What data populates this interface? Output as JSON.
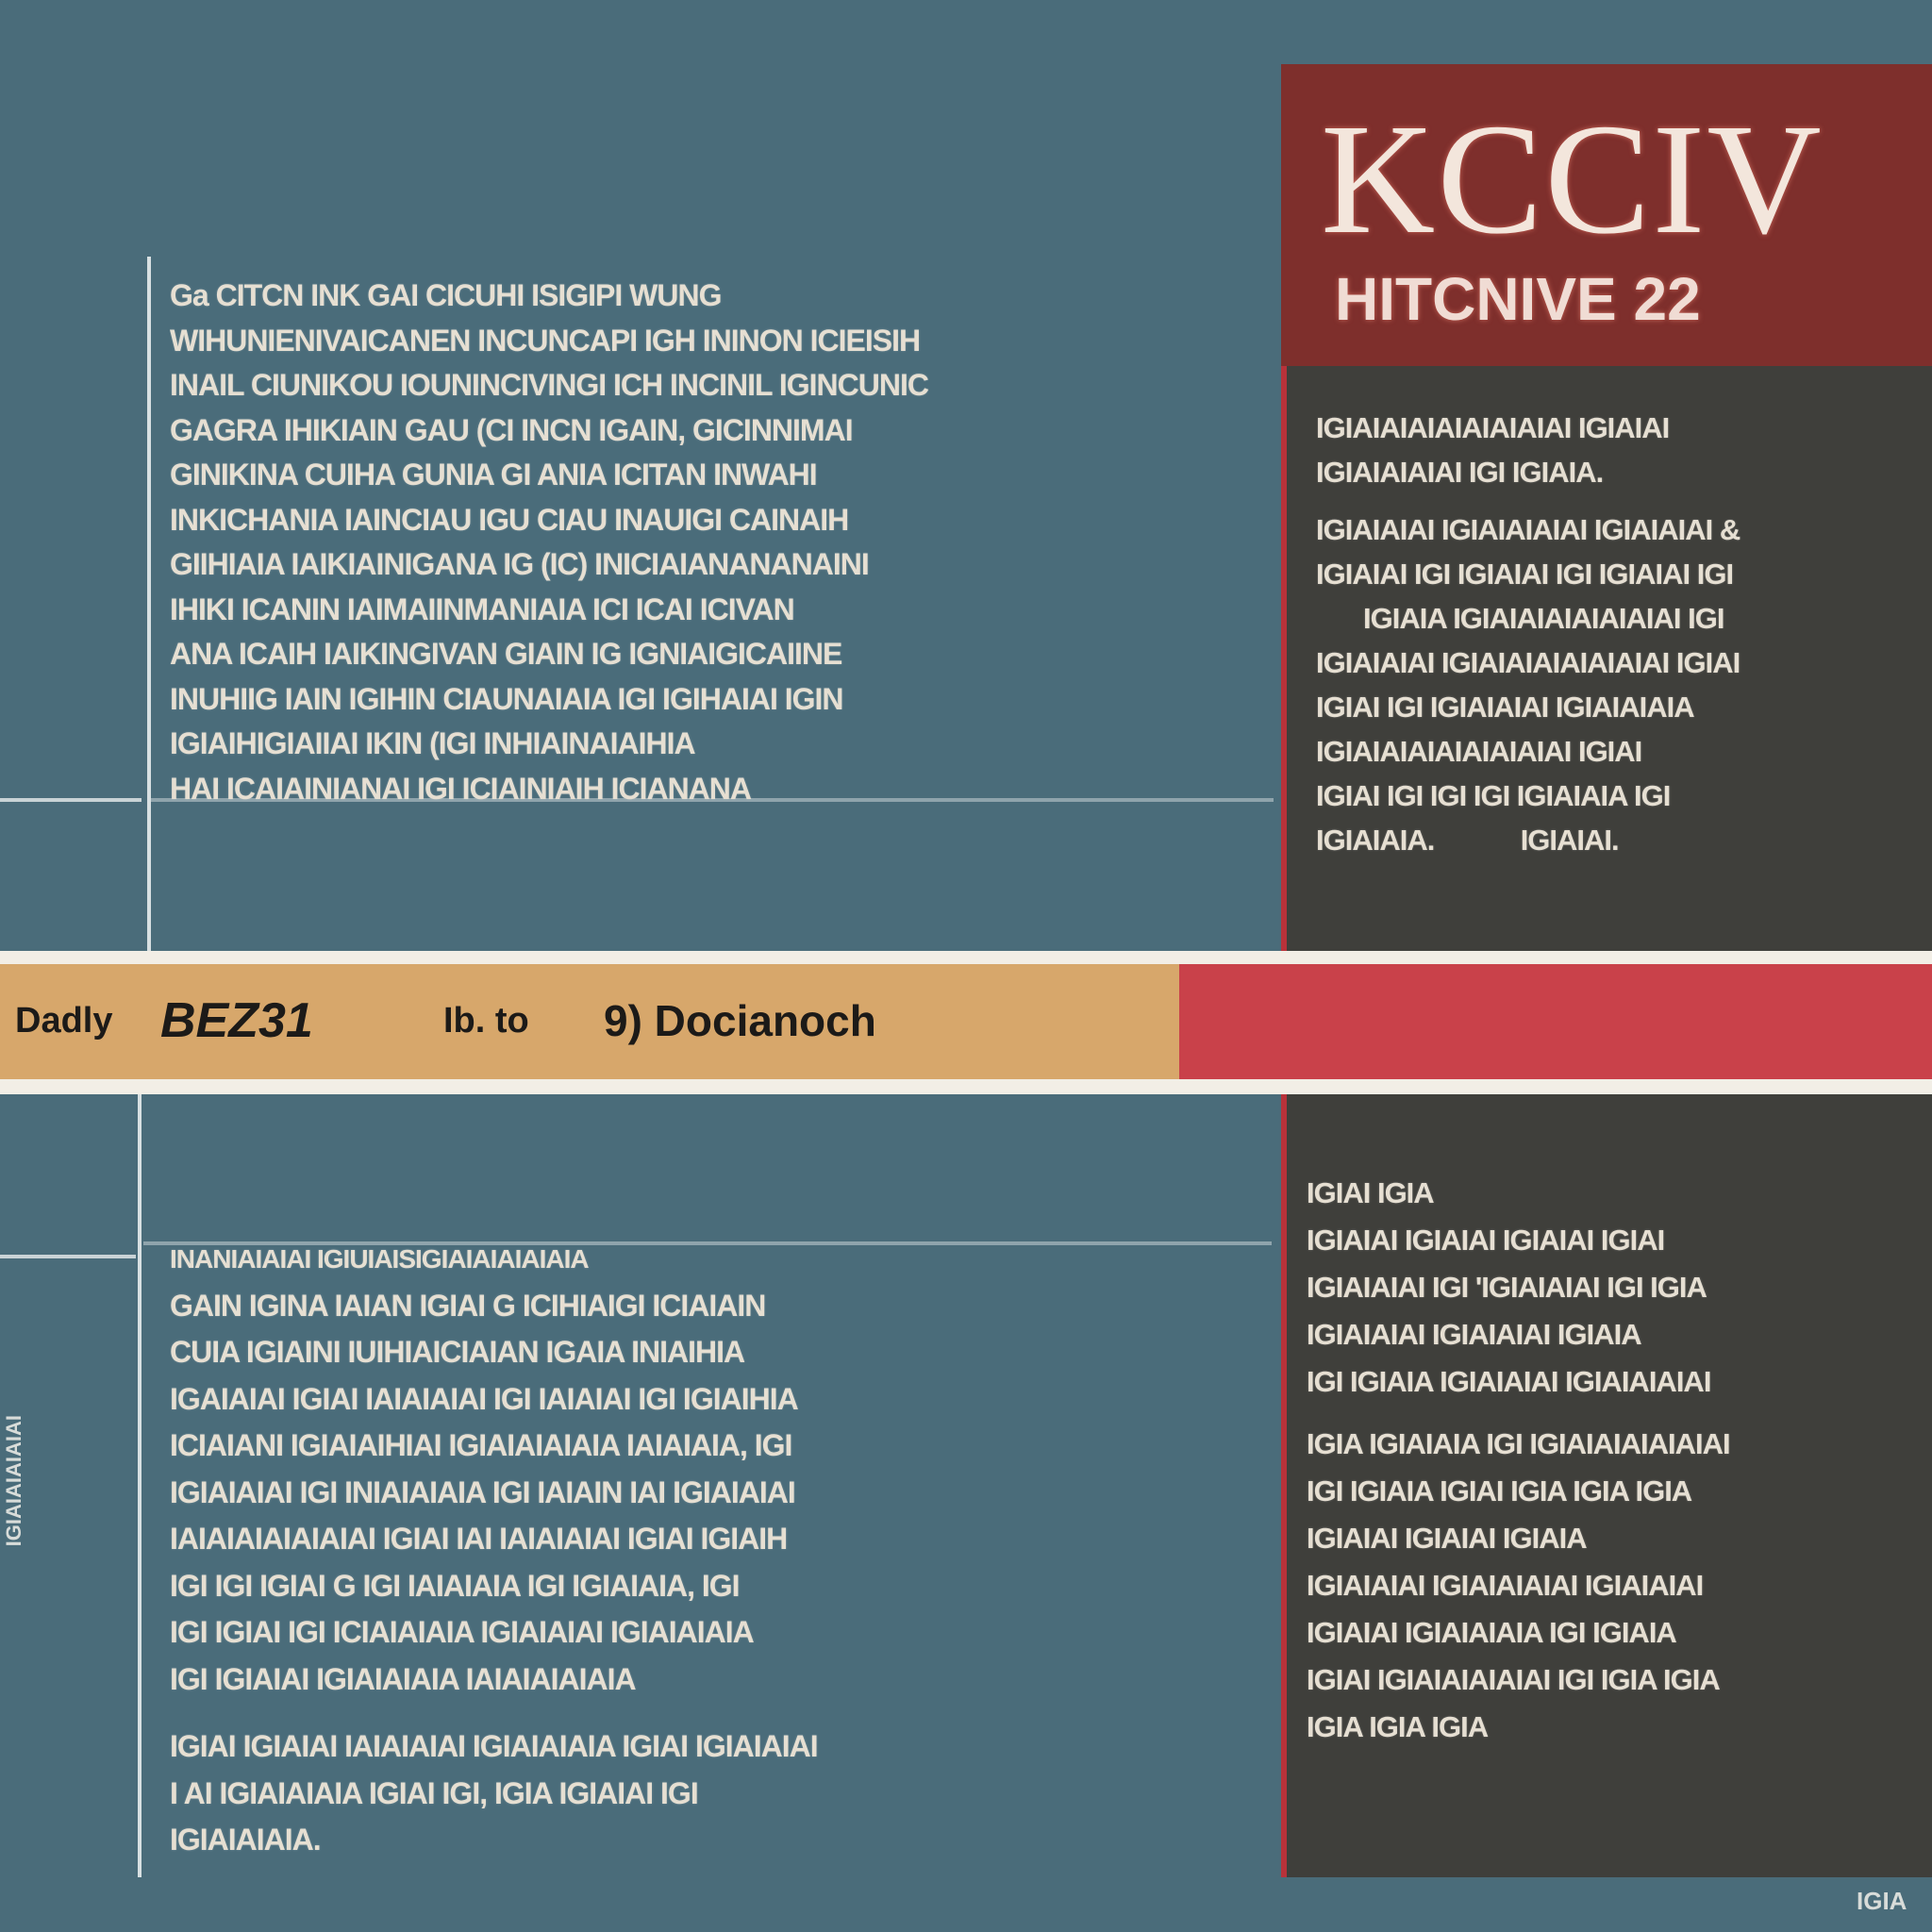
{
  "title": {
    "main": "KCCIV",
    "sub": "HITCNIVE 22"
  },
  "band": {
    "label_a": "Dadly",
    "label_b": "BEZ31",
    "label_c": "Ib. to",
    "label_d": "9) Docianoch"
  },
  "left_top_lines": [
    "Ga CITCN INK GAI CICUHI ISIGIPI WUNG",
    "WIHUNIENIVAICANEN INCUNCAPI IGH ININON ICIEISIH",
    "INAIL CIUNIKOU IOUNINCIVINGI ICH INCINIL IGINCUNIC",
    "GAGRA IHIKIAIN GAU (CI INCN IGAIN, GICINNIMAI",
    "GINIKINA CUIHA GUNIA GI ANIA ICITAN INWAHI",
    "INKICHANIA IAINCIAU IGU CIAU INAUIGI CAINAIH",
    "GIIHIAIA IAIKIAINIGANA IG (IC) INICIAIANANANAINI",
    "IHIKI ICANIN IAIMAIINMANIAIA ICI ICAI ICIVAN",
    "ANA ICAIH IAIKINGIVAN GIAIN IG IGNIAIGICAIINE",
    "INUHIIG IAIN IGIHIN CIAUNAIAIA IGI IGIHAIAI IGIN",
    "IGIAIHIGIAIIAI IKIN (IGI INHIAINAIAIHIA",
    "HAI ICAIAINIANAI IGI ICIAINIAIH ICIANANA"
  ],
  "left_bottom_lines": [
    "INANIAIAIAI IGIUIAISIGIAIAIAIAIAIA",
    "GAIN IGINA IAIAN IGIAI G ICIHIAIGI ICIAIAIN",
    "CUIA IGIAINI IUIHIAICIAIAN IGAIA INIAIHIA",
    "IGAIAIAI IGIAI IAIAIAIAI IGI IAIAIAI IGI IGIAIHIA",
    "ICIAIANI IGIAIAIHIAI IGIAIAIAIAIA IAIAIAIA, IGI",
    "IGIAIAIAI IGI INIAIAIAIA IGI IAIAIN IAI IGIAIAIAI",
    "IAIAIAIAIAIAIAI IGIAI IAI IAIAIAIAI IGIAI IGIAIH",
    "IGI IGI IGIAI G IGI IAIAIAIA IGI IGIAIAIA, IGI",
    "IGI IGIAI IGI ICIAIAIAIA IGIAIAIAI IGIAIAIAIA",
    "IGI IGIAIAI IGIAIAIAIA IAIAIAIAIAIA",
    "IGIAI IGIAIAI IAIAIAIAI IGIAIAIAIA IGIAI IGIAIAIAI",
    "I AI IGIAIAIAIA IGIAI IGI, IGIA IGIAIAI IGI",
    "IGIAIAIAIA."
  ],
  "right_top_lines": [
    "IGIAIAIAIAIAIAIAIAI IGIAIAI",
    "IGIAIAIAIAI IGI IGIAIA.",
    "IGIAIAIAI IGIAIAIAIAI IGIAIAIAI &",
    "IGIAIAI IGI IGIAIAI IGI IGIAIAI IGI",
    "IGIAIA IGIAIAIAIAIAIAIAI IGI",
    "IGIAIAIAI IGIAIAIAIAIAIAIAI IGIAI",
    "IGIAI IGI IGIAIAIAI IGIAIAIAIA",
    "IGIAIAIAIAIAIAIAIAI IGIAI",
    "IGIAI IGI IGI IGI IGIAIAIA IGI",
    "IGIAIAIA.            IGIAIAI."
  ],
  "right_bottom_lines": [
    "IGIAI IGIA",
    "IGIAIAI IGIAIAI IGIAIAI IGIAI",
    "IGIAIAIAI IGI 'IGIAIAIAI IGI IGIA",
    "IGIAIAIAI IGIAIAIAI IGIAIA",
    "IGI IGIAIA IGIAIAIAI IGIAIAIAIAI",
    "IGIA IGIAIAIA IGI IGIAIAIAIAIAIAI",
    "IGI IGIAIA IGIAI IGIA IGIA IGIA",
    "IGIAIAI IGIAIAI IGIAIA",
    "IGIAIAIAI IGIAIAIAIAI IGIAIAIAI",
    "IGIAIAI IGIAIAIAIA IGI IGIAIA",
    "IGIAI IGIAIAIAIAIAI IGI IGIA IGIA",
    "IGIA IGIA IGIA"
  ],
  "margin_note": "IGIAIAIAIAIAI",
  "corner_note": "IGIA"
}
